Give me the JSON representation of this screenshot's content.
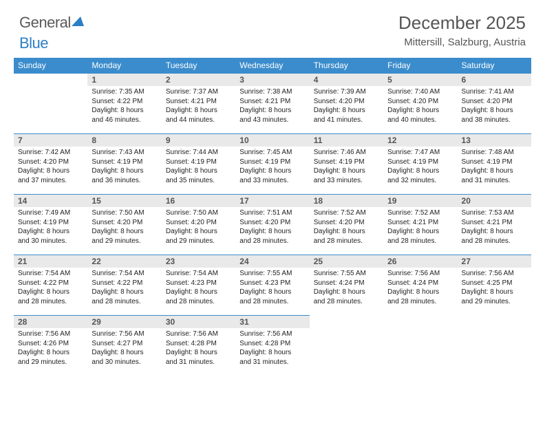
{
  "logo": {
    "text_gray": "General",
    "text_blue": "Blue"
  },
  "header": {
    "title": "December 2025",
    "location": "Mittersill, Salzburg, Austria"
  },
  "calendar": {
    "day_headers": [
      "Sunday",
      "Monday",
      "Tuesday",
      "Wednesday",
      "Thursday",
      "Friday",
      "Saturday"
    ],
    "header_bg": "#3b8ccc",
    "header_fg": "#ffffff",
    "daynum_bg": "#e9e9e9",
    "rule_color": "#3b8ccc",
    "weeks": [
      [
        null,
        {
          "n": "1",
          "sr": "Sunrise: 7:35 AM",
          "ss": "Sunset: 4:22 PM",
          "d1": "Daylight: 8 hours",
          "d2": "and 46 minutes."
        },
        {
          "n": "2",
          "sr": "Sunrise: 7:37 AM",
          "ss": "Sunset: 4:21 PM",
          "d1": "Daylight: 8 hours",
          "d2": "and 44 minutes."
        },
        {
          "n": "3",
          "sr": "Sunrise: 7:38 AM",
          "ss": "Sunset: 4:21 PM",
          "d1": "Daylight: 8 hours",
          "d2": "and 43 minutes."
        },
        {
          "n": "4",
          "sr": "Sunrise: 7:39 AM",
          "ss": "Sunset: 4:20 PM",
          "d1": "Daylight: 8 hours",
          "d2": "and 41 minutes."
        },
        {
          "n": "5",
          "sr": "Sunrise: 7:40 AM",
          "ss": "Sunset: 4:20 PM",
          "d1": "Daylight: 8 hours",
          "d2": "and 40 minutes."
        },
        {
          "n": "6",
          "sr": "Sunrise: 7:41 AM",
          "ss": "Sunset: 4:20 PM",
          "d1": "Daylight: 8 hours",
          "d2": "and 38 minutes."
        }
      ],
      [
        {
          "n": "7",
          "sr": "Sunrise: 7:42 AM",
          "ss": "Sunset: 4:20 PM",
          "d1": "Daylight: 8 hours",
          "d2": "and 37 minutes."
        },
        {
          "n": "8",
          "sr": "Sunrise: 7:43 AM",
          "ss": "Sunset: 4:19 PM",
          "d1": "Daylight: 8 hours",
          "d2": "and 36 minutes."
        },
        {
          "n": "9",
          "sr": "Sunrise: 7:44 AM",
          "ss": "Sunset: 4:19 PM",
          "d1": "Daylight: 8 hours",
          "d2": "and 35 minutes."
        },
        {
          "n": "10",
          "sr": "Sunrise: 7:45 AM",
          "ss": "Sunset: 4:19 PM",
          "d1": "Daylight: 8 hours",
          "d2": "and 33 minutes."
        },
        {
          "n": "11",
          "sr": "Sunrise: 7:46 AM",
          "ss": "Sunset: 4:19 PM",
          "d1": "Daylight: 8 hours",
          "d2": "and 33 minutes."
        },
        {
          "n": "12",
          "sr": "Sunrise: 7:47 AM",
          "ss": "Sunset: 4:19 PM",
          "d1": "Daylight: 8 hours",
          "d2": "and 32 minutes."
        },
        {
          "n": "13",
          "sr": "Sunrise: 7:48 AM",
          "ss": "Sunset: 4:19 PM",
          "d1": "Daylight: 8 hours",
          "d2": "and 31 minutes."
        }
      ],
      [
        {
          "n": "14",
          "sr": "Sunrise: 7:49 AM",
          "ss": "Sunset: 4:19 PM",
          "d1": "Daylight: 8 hours",
          "d2": "and 30 minutes."
        },
        {
          "n": "15",
          "sr": "Sunrise: 7:50 AM",
          "ss": "Sunset: 4:20 PM",
          "d1": "Daylight: 8 hours",
          "d2": "and 29 minutes."
        },
        {
          "n": "16",
          "sr": "Sunrise: 7:50 AM",
          "ss": "Sunset: 4:20 PM",
          "d1": "Daylight: 8 hours",
          "d2": "and 29 minutes."
        },
        {
          "n": "17",
          "sr": "Sunrise: 7:51 AM",
          "ss": "Sunset: 4:20 PM",
          "d1": "Daylight: 8 hours",
          "d2": "and 28 minutes."
        },
        {
          "n": "18",
          "sr": "Sunrise: 7:52 AM",
          "ss": "Sunset: 4:20 PM",
          "d1": "Daylight: 8 hours",
          "d2": "and 28 minutes."
        },
        {
          "n": "19",
          "sr": "Sunrise: 7:52 AM",
          "ss": "Sunset: 4:21 PM",
          "d1": "Daylight: 8 hours",
          "d2": "and 28 minutes."
        },
        {
          "n": "20",
          "sr": "Sunrise: 7:53 AM",
          "ss": "Sunset: 4:21 PM",
          "d1": "Daylight: 8 hours",
          "d2": "and 28 minutes."
        }
      ],
      [
        {
          "n": "21",
          "sr": "Sunrise: 7:54 AM",
          "ss": "Sunset: 4:22 PM",
          "d1": "Daylight: 8 hours",
          "d2": "and 28 minutes."
        },
        {
          "n": "22",
          "sr": "Sunrise: 7:54 AM",
          "ss": "Sunset: 4:22 PM",
          "d1": "Daylight: 8 hours",
          "d2": "and 28 minutes."
        },
        {
          "n": "23",
          "sr": "Sunrise: 7:54 AM",
          "ss": "Sunset: 4:23 PM",
          "d1": "Daylight: 8 hours",
          "d2": "and 28 minutes."
        },
        {
          "n": "24",
          "sr": "Sunrise: 7:55 AM",
          "ss": "Sunset: 4:23 PM",
          "d1": "Daylight: 8 hours",
          "d2": "and 28 minutes."
        },
        {
          "n": "25",
          "sr": "Sunrise: 7:55 AM",
          "ss": "Sunset: 4:24 PM",
          "d1": "Daylight: 8 hours",
          "d2": "and 28 minutes."
        },
        {
          "n": "26",
          "sr": "Sunrise: 7:56 AM",
          "ss": "Sunset: 4:24 PM",
          "d1": "Daylight: 8 hours",
          "d2": "and 28 minutes."
        },
        {
          "n": "27",
          "sr": "Sunrise: 7:56 AM",
          "ss": "Sunset: 4:25 PM",
          "d1": "Daylight: 8 hours",
          "d2": "and 29 minutes."
        }
      ],
      [
        {
          "n": "28",
          "sr": "Sunrise: 7:56 AM",
          "ss": "Sunset: 4:26 PM",
          "d1": "Daylight: 8 hours",
          "d2": "and 29 minutes."
        },
        {
          "n": "29",
          "sr": "Sunrise: 7:56 AM",
          "ss": "Sunset: 4:27 PM",
          "d1": "Daylight: 8 hours",
          "d2": "and 30 minutes."
        },
        {
          "n": "30",
          "sr": "Sunrise: 7:56 AM",
          "ss": "Sunset: 4:28 PM",
          "d1": "Daylight: 8 hours",
          "d2": "and 31 minutes."
        },
        {
          "n": "31",
          "sr": "Sunrise: 7:56 AM",
          "ss": "Sunset: 4:28 PM",
          "d1": "Daylight: 8 hours",
          "d2": "and 31 minutes."
        },
        null,
        null,
        null
      ]
    ]
  }
}
